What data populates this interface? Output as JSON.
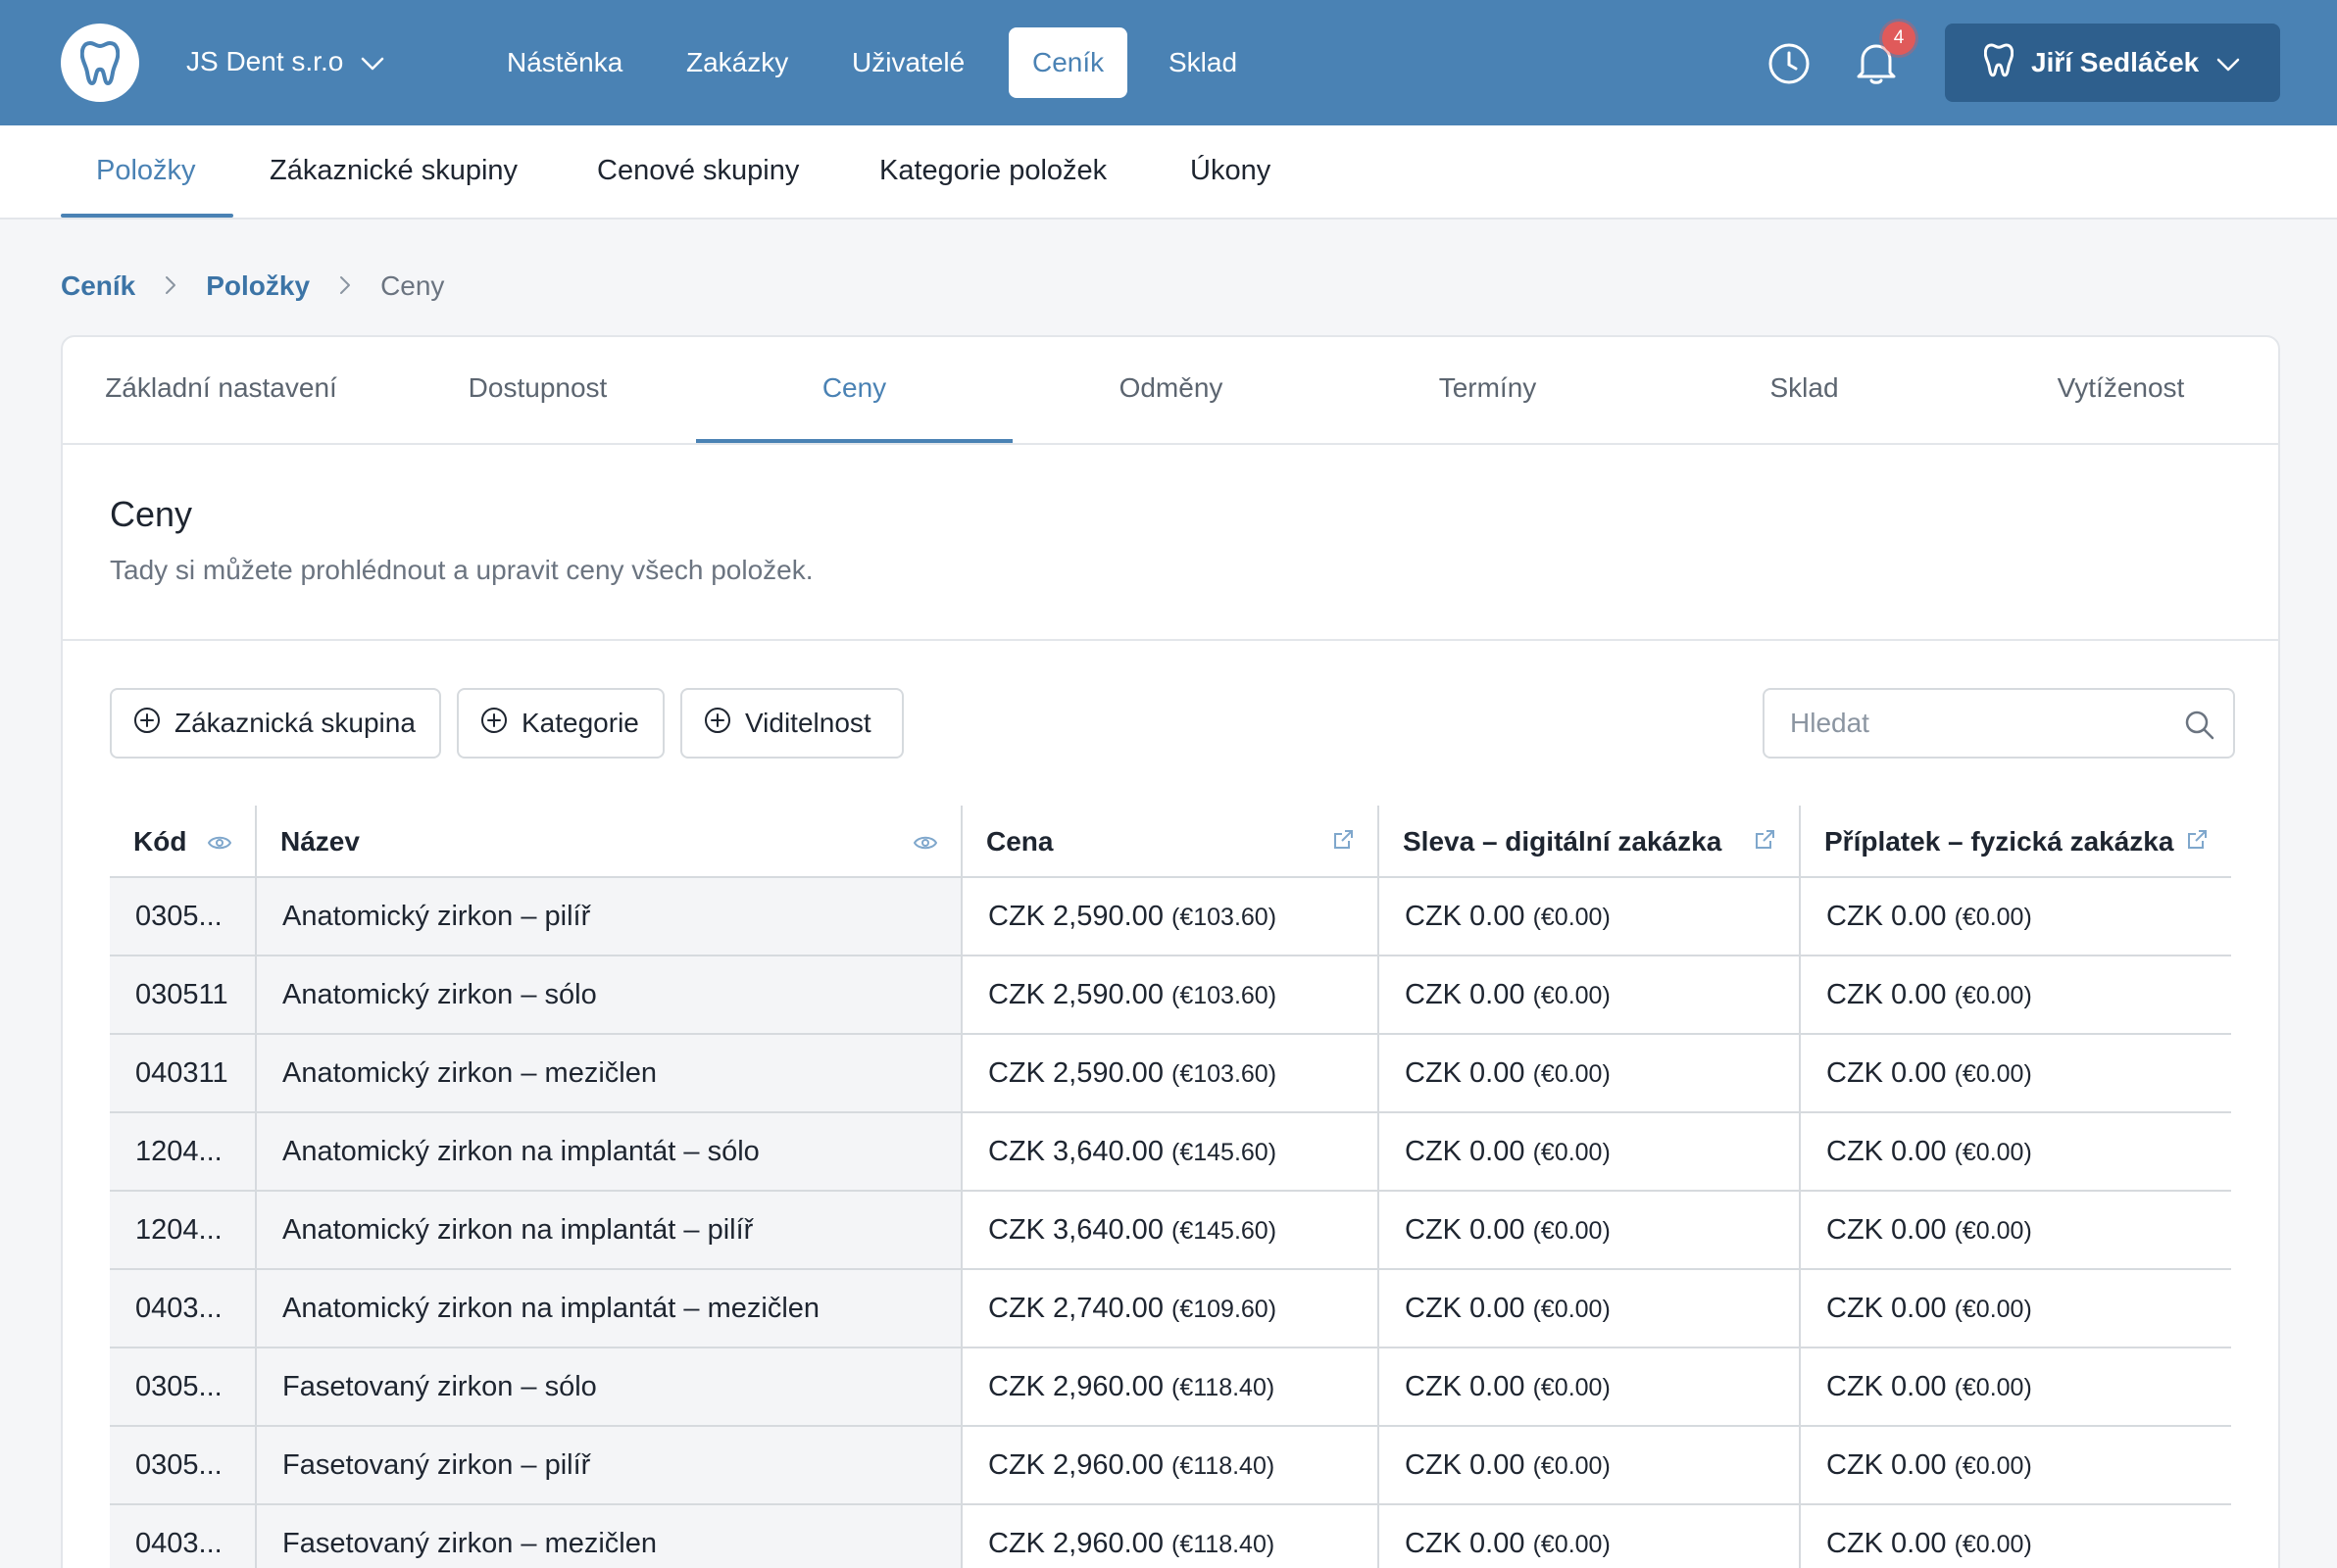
{
  "topbar": {
    "company": "JS Dent s.r.o",
    "nav": [
      "Nástěnka",
      "Zakázky",
      "Uživatelé",
      "Ceník",
      "Sklad"
    ],
    "active_nav": "Ceník",
    "notification_count": "4",
    "user_name": "Jiří Sedláček"
  },
  "subnav": {
    "items": [
      "Položky",
      "Zákaznické skupiny",
      "Cenové skupiny",
      "Kategorie položek",
      "Úkony"
    ],
    "active": "Položky"
  },
  "breadcrumb": [
    "Ceník",
    "Položky",
    "Ceny"
  ],
  "tabs": [
    "Základní nastavení",
    "Dostupnost",
    "Ceny",
    "Odměny",
    "Termíny",
    "Sklad",
    "Vytíženost"
  ],
  "active_tab": "Ceny",
  "section": {
    "title": "Ceny",
    "subtitle": "Tady si můžete prohlédnout a upravit ceny všech položek."
  },
  "filters": [
    "Zákaznická skupina",
    "Kategorie",
    "Viditelnost"
  ],
  "search": {
    "placeholder": "Hledat"
  },
  "table": {
    "columns": [
      "Kód",
      "Název",
      "Cena",
      "Sleva – digitální zakázka",
      "Příplatek – fyzická zakázka"
    ],
    "rows": [
      {
        "code": "0305...",
        "name": "Anatomický zirkon – pilíř",
        "price": "CZK 2,590.00",
        "price_eur": "(€103.60)",
        "discount": "CZK 0.00",
        "discount_eur": "(€0.00)",
        "surcharge": "CZK 0.00",
        "surcharge_eur": "(€0.00)"
      },
      {
        "code": "030511",
        "name": "Anatomický zirkon – sólo",
        "price": "CZK 2,590.00",
        "price_eur": "(€103.60)",
        "discount": "CZK 0.00",
        "discount_eur": "(€0.00)",
        "surcharge": "CZK 0.00",
        "surcharge_eur": "(€0.00)"
      },
      {
        "code": "040311",
        "name": "Anatomický zirkon – mezičlen",
        "price": "CZK 2,590.00",
        "price_eur": "(€103.60)",
        "discount": "CZK 0.00",
        "discount_eur": "(€0.00)",
        "surcharge": "CZK 0.00",
        "surcharge_eur": "(€0.00)"
      },
      {
        "code": "1204...",
        "name": "Anatomický zirkon na implantát – sólo",
        "price": "CZK 3,640.00",
        "price_eur": "(€145.60)",
        "discount": "CZK 0.00",
        "discount_eur": "(€0.00)",
        "surcharge": "CZK 0.00",
        "surcharge_eur": "(€0.00)"
      },
      {
        "code": "1204...",
        "name": "Anatomický zirkon na implantát – pilíř",
        "price": "CZK 3,640.00",
        "price_eur": "(€145.60)",
        "discount": "CZK 0.00",
        "discount_eur": "(€0.00)",
        "surcharge": "CZK 0.00",
        "surcharge_eur": "(€0.00)"
      },
      {
        "code": "0403...",
        "name": "Anatomický zirkon na implantát – mezičlen",
        "price": "CZK 2,740.00",
        "price_eur": "(€109.60)",
        "discount": "CZK 0.00",
        "discount_eur": "(€0.00)",
        "surcharge": "CZK 0.00",
        "surcharge_eur": "(€0.00)"
      },
      {
        "code": "0305...",
        "name": "Fasetovaný zirkon – sólo",
        "price": "CZK 2,960.00",
        "price_eur": "(€118.40)",
        "discount": "CZK 0.00",
        "discount_eur": "(€0.00)",
        "surcharge": "CZK 0.00",
        "surcharge_eur": "(€0.00)"
      },
      {
        "code": "0305...",
        "name": "Fasetovaný zirkon – pilíř",
        "price": "CZK 2,960.00",
        "price_eur": "(€118.40)",
        "discount": "CZK 0.00",
        "discount_eur": "(€0.00)",
        "surcharge": "CZK 0.00",
        "surcharge_eur": "(€0.00)"
      },
      {
        "code": "0403...",
        "name": "Fasetovaný zirkon – mezičlen",
        "price": "CZK 2,960.00",
        "price_eur": "(€118.40)",
        "discount": "CZK 0.00",
        "discount_eur": "(€0.00)",
        "surcharge": "CZK 0.00",
        "surcharge_eur": "(€0.00)"
      }
    ]
  },
  "icons": {
    "logo": "tooth-icon",
    "company_dropdown": "chevron-down-icon",
    "history": "clock-icon",
    "notifications": "bell-icon",
    "user": "tooth-icon",
    "filter_add": "plus-circle-icon",
    "search": "search-icon",
    "column_visibility": "eye-icon",
    "column_edit": "external-edit-icon"
  },
  "colors": {
    "primary": "#4a82b4",
    "user_button": "#2e5f8d",
    "badge": "#e05a5a"
  }
}
